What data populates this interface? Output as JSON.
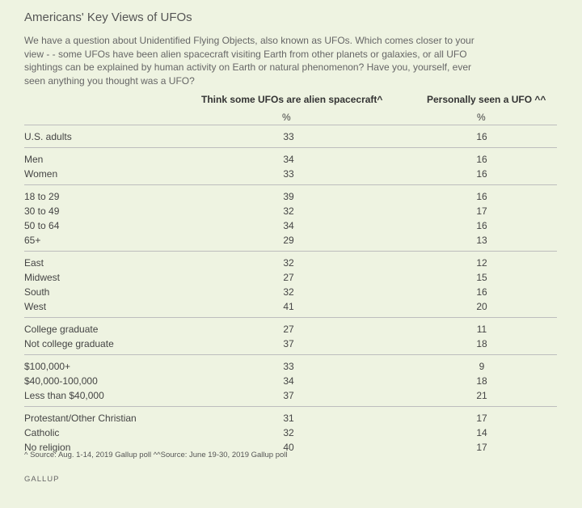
{
  "title": "Americans' Key Views of UFOs",
  "subtitle": "We have a question about Unidentified Flying Objects, also known as UFOs. Which comes closer to your view - - some UFOs have been alien spacecraft visiting Earth from other planets or galaxies, or all UFO sightings can be explained by human activity on Earth or natural phenomenon? Have you, yourself, ever seen anything you thought was a UFO?",
  "footnote": "^ Source: Aug. 1-14, 2019 Gallup poll ^^Source: June 19-30, 2019 Gallup poll",
  "brand": "GALLUP",
  "chart_data": {
    "type": "table",
    "columns": [
      {
        "header": "Think some UFOs are alien spacecraft^",
        "unit": "%"
      },
      {
        "header": "Personally seen a UFO ^^",
        "unit": "%"
      }
    ],
    "groups": [
      {
        "rows": [
          {
            "label": "U.S. adults",
            "values": [
              33,
              16
            ]
          }
        ]
      },
      {
        "rows": [
          {
            "label": "Men",
            "values": [
              34,
              16
            ]
          },
          {
            "label": "Women",
            "values": [
              33,
              16
            ]
          }
        ]
      },
      {
        "rows": [
          {
            "label": "18 to 29",
            "values": [
              39,
              16
            ]
          },
          {
            "label": "30 to 49",
            "values": [
              32,
              17
            ]
          },
          {
            "label": "50 to 64",
            "values": [
              34,
              16
            ]
          },
          {
            "label": "65+",
            "values": [
              29,
              13
            ]
          }
        ]
      },
      {
        "rows": [
          {
            "label": "East",
            "values": [
              32,
              12
            ]
          },
          {
            "label": "Midwest",
            "values": [
              27,
              15
            ]
          },
          {
            "label": "South",
            "values": [
              32,
              16
            ]
          },
          {
            "label": "West",
            "values": [
              41,
              20
            ]
          }
        ]
      },
      {
        "rows": [
          {
            "label": "College graduate",
            "values": [
              27,
              11
            ]
          },
          {
            "label": "Not college graduate",
            "values": [
              37,
              18
            ]
          }
        ]
      },
      {
        "rows": [
          {
            "label": "$100,000+",
            "values": [
              33,
              9
            ]
          },
          {
            "label": "$40,000-100,000",
            "values": [
              34,
              18
            ]
          },
          {
            "label": "Less than $40,000",
            "values": [
              37,
              21
            ]
          }
        ]
      },
      {
        "rows": [
          {
            "label": "Protestant/Other Christian",
            "values": [
              31,
              17
            ]
          },
          {
            "label": "Catholic",
            "values": [
              32,
              14
            ]
          },
          {
            "label": "No religion",
            "values": [
              40,
              17
            ]
          }
        ]
      }
    ]
  }
}
